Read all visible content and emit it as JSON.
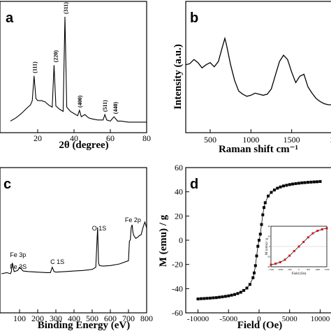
{
  "chart_data": [
    {
      "panel": "a",
      "type": "line",
      "panel_label": "a",
      "xlabel": "2θ (degree)",
      "ylabel": "",
      "xlim": [
        0,
        80
      ],
      "x_ticks": [
        "20",
        "40",
        "60",
        "80"
      ],
      "series": [
        {
          "x": [
            5,
            8,
            11,
            14,
            16,
            17,
            18,
            19,
            20,
            22,
            24,
            26,
            28,
            29,
            30,
            32,
            34,
            35,
            36,
            38,
            40,
            42,
            43,
            44,
            46,
            48,
            50,
            53,
            56,
            57,
            58,
            60,
            62,
            64,
            66,
            70,
            74,
            78,
            80
          ],
          "y": [
            3,
            6,
            10,
            15,
            18,
            22,
            45,
            24,
            22,
            22,
            21,
            18,
            16,
            55,
            17,
            14,
            12,
            100,
            16,
            12,
            10,
            8,
            13,
            7,
            9,
            6,
            5,
            4,
            4,
            9,
            4,
            3,
            7,
            3,
            3,
            2,
            2,
            2,
            2
          ]
        }
      ],
      "peak_labels": [
        {
          "text": "(111)",
          "x": 18.3
        },
        {
          "text": "(220)",
          "x": 29.9
        },
        {
          "text": "(311)",
          "x": 35.4
        },
        {
          "text": "(400)",
          "x": 43.1
        },
        {
          "text": "(511)",
          "x": 57.0
        },
        {
          "text": "(440)",
          "x": 62.6
        }
      ]
    },
    {
      "panel": "b",
      "type": "line",
      "panel_label": "b",
      "xlabel": "Raman shift cm⁻¹",
      "ylabel": "Intensity (a.u.)",
      "xlim": [
        200,
        2000
      ],
      "x_ticks": [
        "500",
        "1000",
        "1500",
        "2"
      ],
      "series": [
        {
          "x": [
            200,
            250,
            300,
            350,
            400,
            450,
            500,
            550,
            600,
            650,
            680,
            700,
            750,
            800,
            850,
            900,
            950,
            1000,
            1050,
            1100,
            1150,
            1200,
            1250,
            1300,
            1350,
            1400,
            1450,
            1500,
            1550,
            1600,
            1650,
            1700,
            1750,
            1800,
            1850,
            1900,
            1950,
            2000
          ],
          "y": [
            55,
            56,
            60,
            57,
            52,
            55,
            57,
            53,
            58,
            72,
            80,
            74,
            55,
            40,
            30,
            27,
            25,
            26,
            28,
            27,
            26,
            27,
            32,
            45,
            58,
            64,
            60,
            48,
            38,
            44,
            46,
            34,
            28,
            23,
            20,
            18,
            17,
            17
          ]
        }
      ]
    },
    {
      "panel": "c",
      "type": "line",
      "panel_label": "c",
      "xlabel": "Binding Energy (eV)",
      "ylabel": "",
      "xlim": [
        0,
        800
      ],
      "x_ticks": [
        "100",
        "200",
        "300",
        "400",
        "500",
        "600",
        "700",
        "800"
      ],
      "series": [
        {
          "x": [
            0,
            30,
            50,
            55,
            60,
            70,
            90,
            100,
            120,
            150,
            200,
            250,
            270,
            280,
            290,
            300,
            350,
            400,
            450,
            500,
            520,
            525,
            530,
            535,
            540,
            560,
            600,
            650,
            700,
            705,
            710,
            715,
            720,
            725,
            730,
            740,
            750,
            760,
            770,
            780,
            790,
            795,
            800
          ],
          "y": [
            10,
            12,
            10,
            14,
            30,
            14,
            16,
            22,
            15,
            14,
            13,
            12,
            12,
            22,
            14,
            13,
            14,
            15,
            16,
            18,
            22,
            60,
            95,
            30,
            25,
            24,
            25,
            28,
            34,
            70,
            72,
            95,
            100,
            85,
            80,
            75,
            77,
            80,
            82,
            95,
            105,
            100,
            94
          ]
        }
      ],
      "peak_labels": [
        {
          "text": "Fe 3p",
          "x": 55
        },
        {
          "text": "Fe 3S",
          "x": 93
        },
        {
          "text": "C 1S",
          "x": 285
        },
        {
          "text": "O 1S",
          "x": 530
        },
        {
          "text": "Fe 2p",
          "x": 711
        }
      ]
    },
    {
      "panel": "d",
      "type": "scatter",
      "panel_label": "d",
      "xlabel": "Field (Oe)",
      "ylabel": "M (emu) / g",
      "xlim": [
        -12000,
        12000
      ],
      "ylim": [
        -60,
        60
      ],
      "x_ticks": [
        "-10000",
        "-5000",
        "0",
        "5000",
        "10000"
      ],
      "y_ticks": [
        "-60",
        "-40",
        "-20",
        "0",
        "20",
        "40",
        "60"
      ],
      "series": [
        {
          "x": [
            -10000,
            -9500,
            -9000,
            -8500,
            -8000,
            -7500,
            -7000,
            -6500,
            -6000,
            -5500,
            -5000,
            -4500,
            -4000,
            -3500,
            -3000,
            -2500,
            -2000,
            -1500,
            -1000,
            -800,
            -600,
            -400,
            -200,
            0,
            200,
            400,
            600,
            800,
            1000,
            1500,
            2000,
            2500,
            3000,
            3500,
            4000,
            4500,
            5000,
            5500,
            6000,
            6500,
            7000,
            7500,
            8000,
            8500,
            9000,
            9500,
            10000
          ],
          "y": [
            -48.5,
            -48.3,
            -48.2,
            -48,
            -47.8,
            -47.6,
            -47.4,
            -47.1,
            -46.8,
            -46.4,
            -46,
            -45.4,
            -44.8,
            -44,
            -43,
            -41.5,
            -39.5,
            -36.5,
            -31,
            -27,
            -21,
            -13,
            -5,
            0,
            5,
            13,
            21,
            27,
            31,
            36.5,
            39.5,
            41.5,
            43,
            44,
            44.8,
            45.4,
            46,
            46.4,
            46.8,
            47.1,
            47.4,
            47.6,
            47.8,
            48,
            48.2,
            48.3,
            48.5
          ]
        }
      ],
      "inset": {
        "xlabel": "Field (Oe)",
        "ylabel": "M (emu) / g",
        "x_ticks": [
          "-1500",
          "-1000",
          "-500",
          "0",
          "500",
          "1000",
          "1500"
        ],
        "y_ticks": [
          "-40",
          "-20",
          "0",
          "20",
          "40"
        ],
        "series": [
          {
            "x": [
              -1500,
              -1250,
              -1000,
              -750,
              -500,
              -250,
              0,
              250,
              500,
              750,
              1000,
              1250,
              1500
            ],
            "y": [
              -36,
              -34,
              -31,
              -26,
              -18,
              -9,
              0,
              9,
              18,
              26,
              31,
              34,
              36
            ]
          }
        ]
      }
    }
  ]
}
